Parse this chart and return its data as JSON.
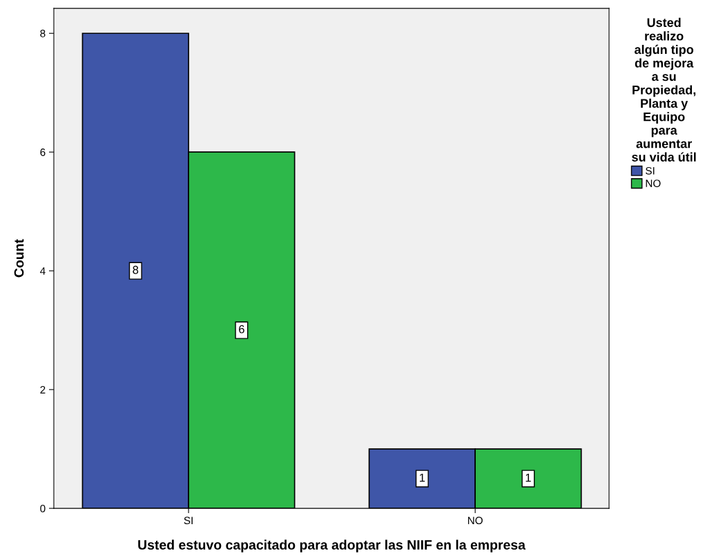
{
  "chart_data": {
    "type": "bar",
    "xlabel": "Usted estuvo capacitado para adoptar las NIIF en la empresa",
    "ylabel": "Count",
    "legend_title": "Usted\nrealizo\nalgún tipo\nde mejora\na su\nPropiedad,\nPlanta y\nEquipo\npara\naumentar\nsu vida útil",
    "categories": [
      "SI",
      "NO"
    ],
    "series": [
      {
        "name": "SI",
        "color": "#3f56a8",
        "values": [
          8,
          1
        ]
      },
      {
        "name": "NO",
        "color": "#2db84a",
        "values": [
          6,
          1
        ]
      }
    ],
    "ylim": [
      0,
      8.42
    ],
    "yticks": [
      0,
      2,
      4,
      6,
      8
    ],
    "data_labels": true,
    "legend": "right",
    "grid": false
  }
}
